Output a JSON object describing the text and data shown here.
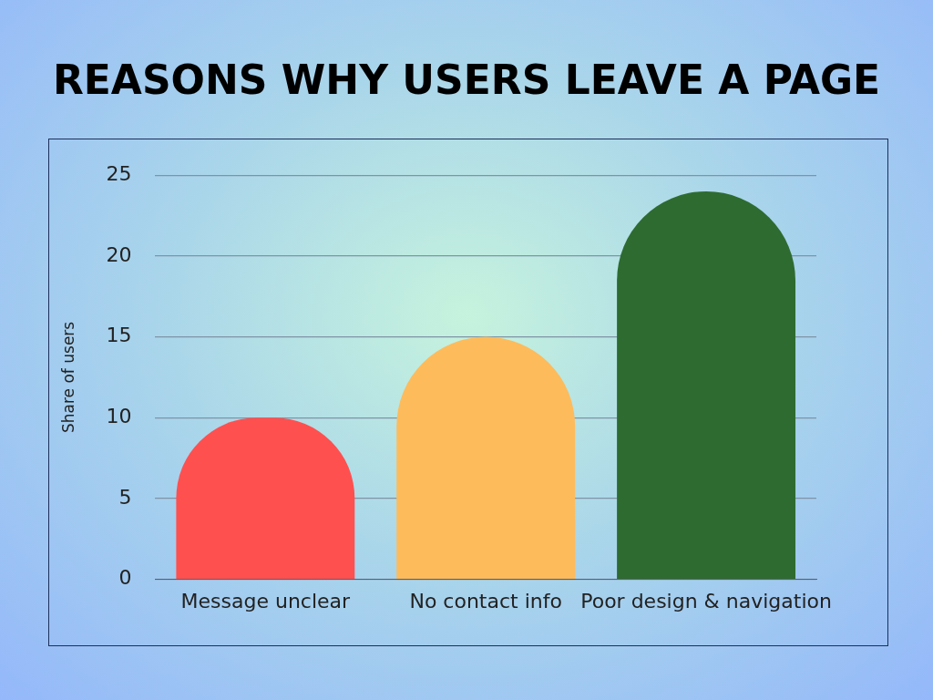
{
  "chart_data": {
    "type": "bar",
    "title": "REASONS WHY USERS LEAVE A PAGE",
    "ylabel": "Share of users",
    "categories": [
      "Message unclear",
      "No contact info",
      "Poor design & navigation"
    ],
    "values": [
      10,
      15,
      24
    ],
    "colors": [
      "#ff5050",
      "#fdbb5c",
      "#2e6b30"
    ],
    "ylim": [
      0,
      25
    ],
    "yticks": [
      0,
      5,
      10,
      15,
      20,
      25
    ],
    "grid": "y"
  }
}
